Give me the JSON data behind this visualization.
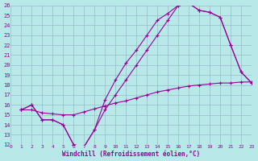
{
  "xlabel": "Windchill (Refroidissement éolien,°C)",
  "bg_color": "#b8e8e8",
  "line_color": "#990099",
  "grid_color": "#99bbcc",
  "xlim": [
    0,
    23
  ],
  "ylim": [
    12,
    26
  ],
  "xticks": [
    0,
    1,
    2,
    3,
    4,
    5,
    6,
    7,
    8,
    9,
    10,
    11,
    12,
    13,
    14,
    15,
    16,
    17,
    18,
    19,
    20,
    21,
    22,
    23
  ],
  "yticks": [
    12,
    13,
    14,
    15,
    16,
    17,
    18,
    19,
    20,
    21,
    22,
    23,
    24,
    25,
    26
  ],
  "curve1_x": [
    1,
    2,
    3,
    4,
    5,
    6,
    7,
    8,
    9,
    10,
    11,
    12,
    13,
    14,
    15,
    16,
    17,
    18,
    19,
    20,
    21,
    22,
    23
  ],
  "curve1_y": [
    15.5,
    16.0,
    14.5,
    14.5,
    14.0,
    12.0,
    11.8,
    13.5,
    16.5,
    18.5,
    20.2,
    21.5,
    23.0,
    24.5,
    25.2,
    26.0,
    26.2,
    25.5,
    25.3,
    24.8,
    22.0,
    19.3,
    18.2
  ],
  "curve2_x": [
    1,
    2,
    3,
    4,
    5,
    6,
    7,
    8,
    9,
    10,
    11,
    12,
    13,
    14,
    15,
    16,
    17,
    18,
    19,
    20,
    21,
    22,
    23
  ],
  "curve2_y": [
    15.5,
    16.0,
    14.5,
    14.5,
    14.0,
    12.0,
    11.8,
    13.5,
    15.5,
    17.0,
    18.5,
    20.0,
    21.5,
    23.0,
    24.5,
    26.0,
    26.2,
    25.5,
    25.3,
    24.8,
    22.0,
    19.3,
    18.2
  ],
  "curve3_x": [
    1,
    2,
    3,
    4,
    5,
    6,
    7,
    8,
    9,
    10,
    11,
    12,
    13,
    14,
    15,
    16,
    17,
    18,
    19,
    20,
    21,
    22,
    23
  ],
  "curve3_y": [
    15.5,
    15.5,
    15.2,
    15.1,
    15.0,
    15.0,
    15.3,
    15.6,
    15.9,
    16.2,
    16.4,
    16.7,
    17.0,
    17.3,
    17.5,
    17.7,
    17.9,
    18.0,
    18.1,
    18.2,
    18.2,
    18.3,
    18.3
  ]
}
